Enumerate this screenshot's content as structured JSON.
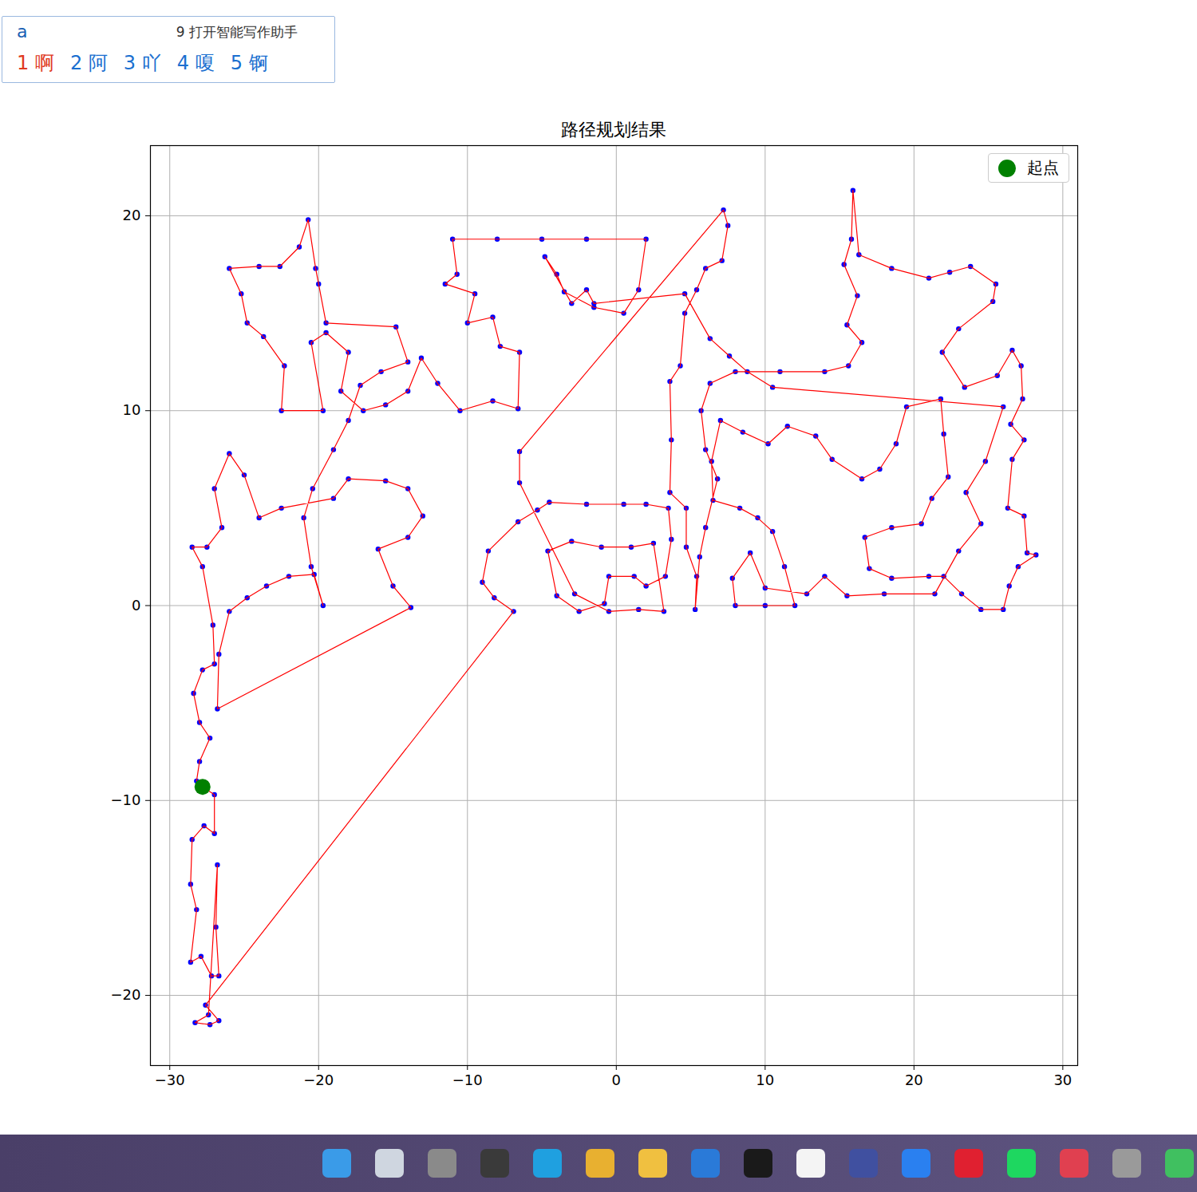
{
  "chart_data": {
    "type": "line",
    "title": "路径规划结果",
    "xlim": [
      -31.3,
      31.0
    ],
    "ylim": [
      -23.6,
      23.6
    ],
    "xticks": [
      -30,
      -20,
      -10,
      0,
      10,
      20,
      30
    ],
    "yticks": [
      -20,
      -10,
      0,
      10,
      20
    ],
    "grid": true,
    "legend": "upper right",
    "series": [
      {
        "type": "scatter",
        "color": "#0000ff",
        "marker": "o",
        "x": [
          -27.8,
          -27.0,
          -27.0,
          -27.7,
          -28.5,
          -28.6,
          -28.2,
          -28.6,
          -27.9,
          -27.2,
          -26.7,
          -26.9,
          -26.8,
          -27.4,
          -28.3,
          -27.3,
          -26.7,
          -27.6,
          -6.9,
          -8.2,
          -9.0,
          -8.6,
          -6.6,
          -5.3,
          -4.5,
          -2.0,
          0.5,
          2.0,
          3.5,
          3.7,
          3.3,
          2.0,
          1.2,
          -0.5,
          -0.8,
          -2.5,
          -4.0,
          -4.6,
          -3.0,
          -1.0,
          1.0,
          2.5,
          3.2,
          1.5,
          -0.5,
          -2.8,
          -6.5,
          -6.5,
          7.2,
          7.5,
          7.1,
          6.0,
          5.4,
          4.6,
          4.3,
          3.6,
          3.7,
          3.6,
          4.7,
          4.7,
          5.4,
          5.3,
          5.6,
          6.0,
          6.8,
          6.0,
          5.7,
          6.3,
          8.0,
          11.0,
          14.0,
          15.6,
          16.5,
          15.5,
          16.2,
          15.3,
          15.8,
          15.9,
          16.3,
          18.5,
          21.0,
          22.4,
          23.8,
          25.5,
          25.3,
          23.0,
          21.9,
          23.4,
          25.6,
          26.6,
          27.2,
          27.3,
          26.5,
          27.4,
          26.6,
          26.3,
          27.4,
          27.6,
          28.2,
          27.0,
          26.4,
          26.0,
          24.5,
          23.2,
          22.0,
          21.0,
          18.5,
          17.0,
          16.7,
          18.5,
          20.5,
          21.2,
          22.3,
          22.0,
          21.8,
          19.5,
          18.8,
          17.7,
          16.5,
          14.5,
          13.4,
          11.5,
          10.2,
          8.5,
          7.0,
          6.4,
          6.5,
          8.3,
          9.5,
          10.5,
          11.3,
          12.0,
          10.0,
          8.0,
          7.8,
          9.0,
          10.0,
          12.8,
          14.0,
          15.5,
          18.0,
          21.4,
          23.0,
          24.5,
          23.5,
          24.8,
          26.0,
          10.5,
          8.8,
          7.6,
          6.3,
          4.6,
          -1.5,
          -2.0,
          -3.0,
          -4.8,
          -4.0,
          -3.5,
          -1.5,
          0.5,
          1.5,
          2.0,
          -2.0,
          -5.0,
          -8.0,
          -11.0,
          -10.7,
          -11.5,
          -9.5,
          -10.0,
          -8.3,
          -7.8,
          -6.5,
          -6.6,
          -8.3,
          -10.5,
          -12.0,
          -13.1,
          -14.0,
          -15.5,
          -17.0,
          -18.5,
          -18.0,
          -19.5,
          -20.5,
          -19.7,
          -22.5,
          -22.3,
          -23.7,
          -24.8,
          -25.2,
          -26.0,
          -24.0,
          -22.6,
          -21.3,
          -20.7,
          -20.2,
          -20.0,
          -19.5,
          -14.8,
          -14.0,
          -15.8,
          -17.2,
          -18.0,
          -19.0,
          -20.4,
          -21.0,
          -20.5,
          -19.7,
          -20.3,
          -22.0,
          -23.5,
          -24.8,
          -26.0,
          -26.7,
          -26.8,
          -13.8,
          -15.0,
          -16.0,
          -14.0,
          -13.0,
          -14.0,
          -15.5,
          -18.0,
          -19.0,
          -22.5,
          -24.0,
          -25.0,
          -26.0,
          -27.0,
          -26.5,
          -27.5,
          -28.5,
          -27.8,
          -27.1,
          -27.0,
          -27.8,
          -28.4,
          -28.0,
          -27.3,
          -28.0,
          -28.2
        ],
        "values": [
          -9.3,
          -9.7,
          -11.7,
          -11.3,
          -12.0,
          -14.3,
          -15.6,
          -18.3,
          -18.0,
          -19.0,
          -19.0,
          -16.5,
          -13.3,
          -21.0,
          -21.4,
          -21.5,
          -21.3,
          -20.5,
          -0.3,
          0.4,
          1.2,
          2.8,
          4.3,
          4.9,
          5.3,
          5.2,
          5.2,
          5.2,
          5.0,
          3.4,
          1.5,
          1.0,
          1.5,
          1.5,
          0.1,
          -0.3,
          0.5,
          2.8,
          3.3,
          3.0,
          3.0,
          3.2,
          -0.3,
          -0.2,
          -0.3,
          0.6,
          6.3,
          7.9,
          20.3,
          19.5,
          17.7,
          17.3,
          16.2,
          15.0,
          12.3,
          11.5,
          8.5,
          5.8,
          5.0,
          3.0,
          1.5,
          -0.2,
          2.5,
          4.0,
          6.5,
          8.0,
          10.0,
          11.4,
          12.0,
          12.0,
          12.0,
          12.3,
          13.5,
          14.4,
          15.9,
          17.5,
          18.8,
          21.3,
          18.0,
          17.3,
          16.8,
          17.1,
          17.4,
          16.5,
          15.6,
          14.2,
          13.0,
          11.2,
          11.8,
          13.1,
          12.3,
          10.6,
          9.3,
          8.5,
          7.5,
          5.0,
          4.6,
          2.7,
          2.6,
          2.0,
          1.0,
          -0.2,
          -0.2,
          0.6,
          1.5,
          1.5,
          1.4,
          1.9,
          3.5,
          4.0,
          4.2,
          5.5,
          6.6,
          8.8,
          10.6,
          10.2,
          8.3,
          7.0,
          6.5,
          7.5,
          8.7,
          9.2,
          8.3,
          8.9,
          9.5,
          7.4,
          5.4,
          5.0,
          4.5,
          3.8,
          2.0,
          0.0,
          0.0,
          0.0,
          1.4,
          2.7,
          0.9,
          0.6,
          1.5,
          0.5,
          0.6,
          0.6,
          2.8,
          4.2,
          5.8,
          7.4,
          10.2,
          11.2,
          12.0,
          12.8,
          13.7,
          16.0,
          15.5,
          16.2,
          15.5,
          17.9,
          17.0,
          16.1,
          15.3,
          15.0,
          16.2,
          18.8,
          18.8,
          18.8,
          18.8,
          18.8,
          17.0,
          16.5,
          16.0,
          14.5,
          14.8,
          13.3,
          13.0,
          10.1,
          10.5,
          10.0,
          11.4,
          12.7,
          11.0,
          10.3,
          10.0,
          11.0,
          13.0,
          14.0,
          13.5,
          10.0,
          10.0,
          12.3,
          13.8,
          14.5,
          16.0,
          17.3,
          17.4,
          17.4,
          18.4,
          19.8,
          17.3,
          16.5,
          14.5,
          14.3,
          12.5,
          12.0,
          11.3,
          9.5,
          8.0,
          6.0,
          4.5,
          2.0,
          0.0,
          1.6,
          1.5,
          1.0,
          0.4,
          -0.3,
          -2.5,
          -5.3,
          -0.1,
          1.0,
          2.9,
          3.5,
          4.6,
          6.0,
          6.4,
          6.5,
          5.5,
          5.0,
          4.5,
          6.7,
          7.8,
          6.0,
          4.0,
          3.0,
          3.0,
          2.0,
          -1.0,
          -3.0,
          -3.3,
          -4.5,
          -6.0,
          -6.8,
          -8.0,
          -9.0
        ]
      },
      {
        "type": "line",
        "color": "#ff0000",
        "x": [
          -27.8,
          -27.0,
          -27.0,
          -27.7,
          -28.5,
          -28.6,
          -28.2,
          -28.6,
          -27.9,
          -27.2,
          -26.7,
          -26.9,
          -26.8,
          -27.4,
          -28.3,
          -27.3,
          -26.7,
          -27.6,
          -6.9,
          -8.2,
          -9.0,
          -8.6,
          -6.6,
          -5.3,
          -4.5,
          -2.0,
          0.5,
          2.0,
          3.5,
          3.7,
          3.3,
          2.0,
          1.2,
          -0.5,
          -0.8,
          -2.5,
          -4.0,
          -4.6,
          -3.0,
          -1.0,
          1.0,
          2.5,
          3.2,
          1.5,
          -0.5,
          -2.8,
          -6.5,
          -6.5,
          7.2,
          7.5,
          7.1,
          6.0,
          5.4,
          4.6,
          4.3,
          3.6,
          3.7,
          3.6,
          4.7,
          4.7,
          5.4,
          5.3,
          5.6,
          6.0,
          6.8,
          6.0,
          5.7,
          6.3,
          8.0,
          11.0,
          14.0,
          15.6,
          16.5,
          15.5,
          16.2,
          15.3,
          15.8,
          15.9,
          16.3,
          18.5,
          21.0,
          22.4,
          23.8,
          25.5,
          25.3,
          23.0,
          21.9,
          23.4,
          25.6,
          26.6,
          27.2,
          27.3,
          26.5,
          27.4,
          26.6,
          26.3,
          27.4,
          27.6,
          28.2,
          27.0,
          26.4,
          26.0,
          24.5,
          23.2,
          22.0,
          21.0,
          18.5,
          17.0,
          16.7,
          18.5,
          20.5,
          21.2,
          22.3,
          22.0,
          21.8,
          19.5,
          18.8,
          17.7,
          16.5,
          14.5,
          13.4,
          11.5,
          10.2,
          8.5,
          7.0,
          6.4,
          6.5,
          8.3,
          9.5,
          10.5,
          11.3,
          12.0,
          10.0,
          8.0,
          7.8,
          9.0,
          10.0,
          12.8,
          14.0,
          15.5,
          18.0,
          21.4,
          23.0,
          24.5,
          23.5,
          24.8,
          26.0,
          10.5,
          8.8,
          7.6,
          6.3,
          4.6,
          -1.5,
          -2.0,
          -3.0,
          -4.8,
          -4.0,
          -3.5,
          -1.5,
          0.5,
          1.5,
          2.0,
          -2.0,
          -5.0,
          -8.0,
          -11.0,
          -10.7,
          -11.5,
          -9.5,
          -10.0,
          -8.3,
          -7.8,
          -6.5,
          -6.6,
          -8.3,
          -10.5,
          -12.0,
          -13.1,
          -14.0,
          -15.5,
          -17.0,
          -18.5,
          -18.0,
          -19.5,
          -20.5,
          -19.7,
          -22.5,
          -22.3,
          -23.7,
          -24.8,
          -25.2,
          -26.0,
          -24.0,
          -22.6,
          -21.3,
          -20.7,
          -20.2,
          -20.0,
          -19.5,
          -14.8,
          -14.0,
          -15.8,
          -17.2,
          -18.0,
          -19.0,
          -20.4,
          -21.0,
          -20.5,
          -19.7,
          -20.3,
          -22.0,
          -23.5,
          -24.8,
          -26.0,
          -26.7,
          -26.8,
          -13.8,
          -15.0,
          -16.0,
          -14.0,
          -13.0,
          -14.0,
          -15.5,
          -18.0,
          -19.0,
          -22.5,
          -24.0,
          -25.0,
          -26.0,
          -27.0,
          -26.5,
          -27.5,
          -28.5,
          -27.8,
          -27.1,
          -27.0,
          -27.8,
          -28.4,
          -28.0,
          -27.3,
          -28.0,
          -28.2
        ],
        "values": [
          -9.3,
          -9.7,
          -11.7,
          -11.3,
          -12.0,
          -14.3,
          -15.6,
          -18.3,
          -18.0,
          -19.0,
          -19.0,
          -16.5,
          -13.3,
          -21.0,
          -21.4,
          -21.5,
          -21.3,
          -20.5,
          -0.3,
          0.4,
          1.2,
          2.8,
          4.3,
          4.9,
          5.3,
          5.2,
          5.2,
          5.2,
          5.0,
          3.4,
          1.5,
          1.0,
          1.5,
          1.5,
          0.1,
          -0.3,
          0.5,
          2.8,
          3.3,
          3.0,
          3.0,
          3.2,
          -0.3,
          -0.2,
          -0.3,
          0.6,
          6.3,
          7.9,
          20.3,
          19.5,
          17.7,
          17.3,
          16.2,
          15.0,
          12.3,
          11.5,
          8.5,
          5.8,
          5.0,
          3.0,
          1.5,
          -0.2,
          2.5,
          4.0,
          6.5,
          8.0,
          10.0,
          11.4,
          12.0,
          12.0,
          12.0,
          12.3,
          13.5,
          14.4,
          15.9,
          17.5,
          18.8,
          21.3,
          18.0,
          17.3,
          16.8,
          17.1,
          17.4,
          16.5,
          15.6,
          14.2,
          13.0,
          11.2,
          11.8,
          13.1,
          12.3,
          10.6,
          9.3,
          8.5,
          7.5,
          5.0,
          4.6,
          2.7,
          2.6,
          2.0,
          1.0,
          -0.2,
          -0.2,
          0.6,
          1.5,
          1.5,
          1.4,
          1.9,
          3.5,
          4.0,
          4.2,
          5.5,
          6.6,
          8.8,
          10.6,
          10.2,
          8.3,
          7.0,
          6.5,
          7.5,
          8.7,
          9.2,
          8.3,
          8.9,
          9.5,
          7.4,
          5.4,
          5.0,
          4.5,
          3.8,
          2.0,
          0.0,
          0.0,
          0.0,
          1.4,
          2.7,
          0.9,
          0.6,
          1.5,
          0.5,
          0.6,
          0.6,
          2.8,
          4.2,
          5.8,
          7.4,
          10.2,
          11.2,
          12.0,
          12.8,
          13.7,
          16.0,
          15.5,
          16.2,
          15.5,
          17.9,
          17.0,
          16.1,
          15.3,
          15.0,
          16.2,
          18.8,
          18.8,
          18.8,
          18.8,
          18.8,
          17.0,
          16.5,
          16.0,
          14.5,
          14.8,
          13.3,
          13.0,
          10.1,
          10.5,
          10.0,
          11.4,
          12.7,
          11.0,
          10.3,
          10.0,
          11.0,
          13.0,
          14.0,
          13.5,
          10.0,
          10.0,
          12.3,
          13.8,
          14.5,
          16.0,
          17.3,
          17.4,
          17.4,
          18.4,
          19.8,
          17.3,
          16.5,
          14.5,
          14.3,
          12.5,
          12.0,
          11.3,
          9.5,
          8.0,
          6.0,
          4.5,
          2.0,
          0.0,
          1.6,
          1.5,
          1.0,
          0.4,
          -0.3,
          -2.5,
          -5.3,
          -0.1,
          1.0,
          2.9,
          3.5,
          4.6,
          6.0,
          6.4,
          6.5,
          5.5,
          5.0,
          4.5,
          6.7,
          7.8,
          6.0,
          4.0,
          3.0,
          3.0,
          2.0,
          -1.0,
          -3.0,
          -3.3,
          -4.5,
          -6.0,
          -6.8,
          -8.0,
          -9.0
        ]
      },
      {
        "type": "scatter",
        "name": "起点",
        "color": "#008000",
        "marker": "o",
        "x": [
          -27.8
        ],
        "values": [
          -9.3
        ]
      }
    ]
  },
  "ime_popup": {
    "input": "a",
    "hint": "9 打开智能写作助手",
    "candidates": [
      "1 啊",
      "2 阿",
      "3 吖",
      "4 嗄",
      "5 锕"
    ]
  }
}
